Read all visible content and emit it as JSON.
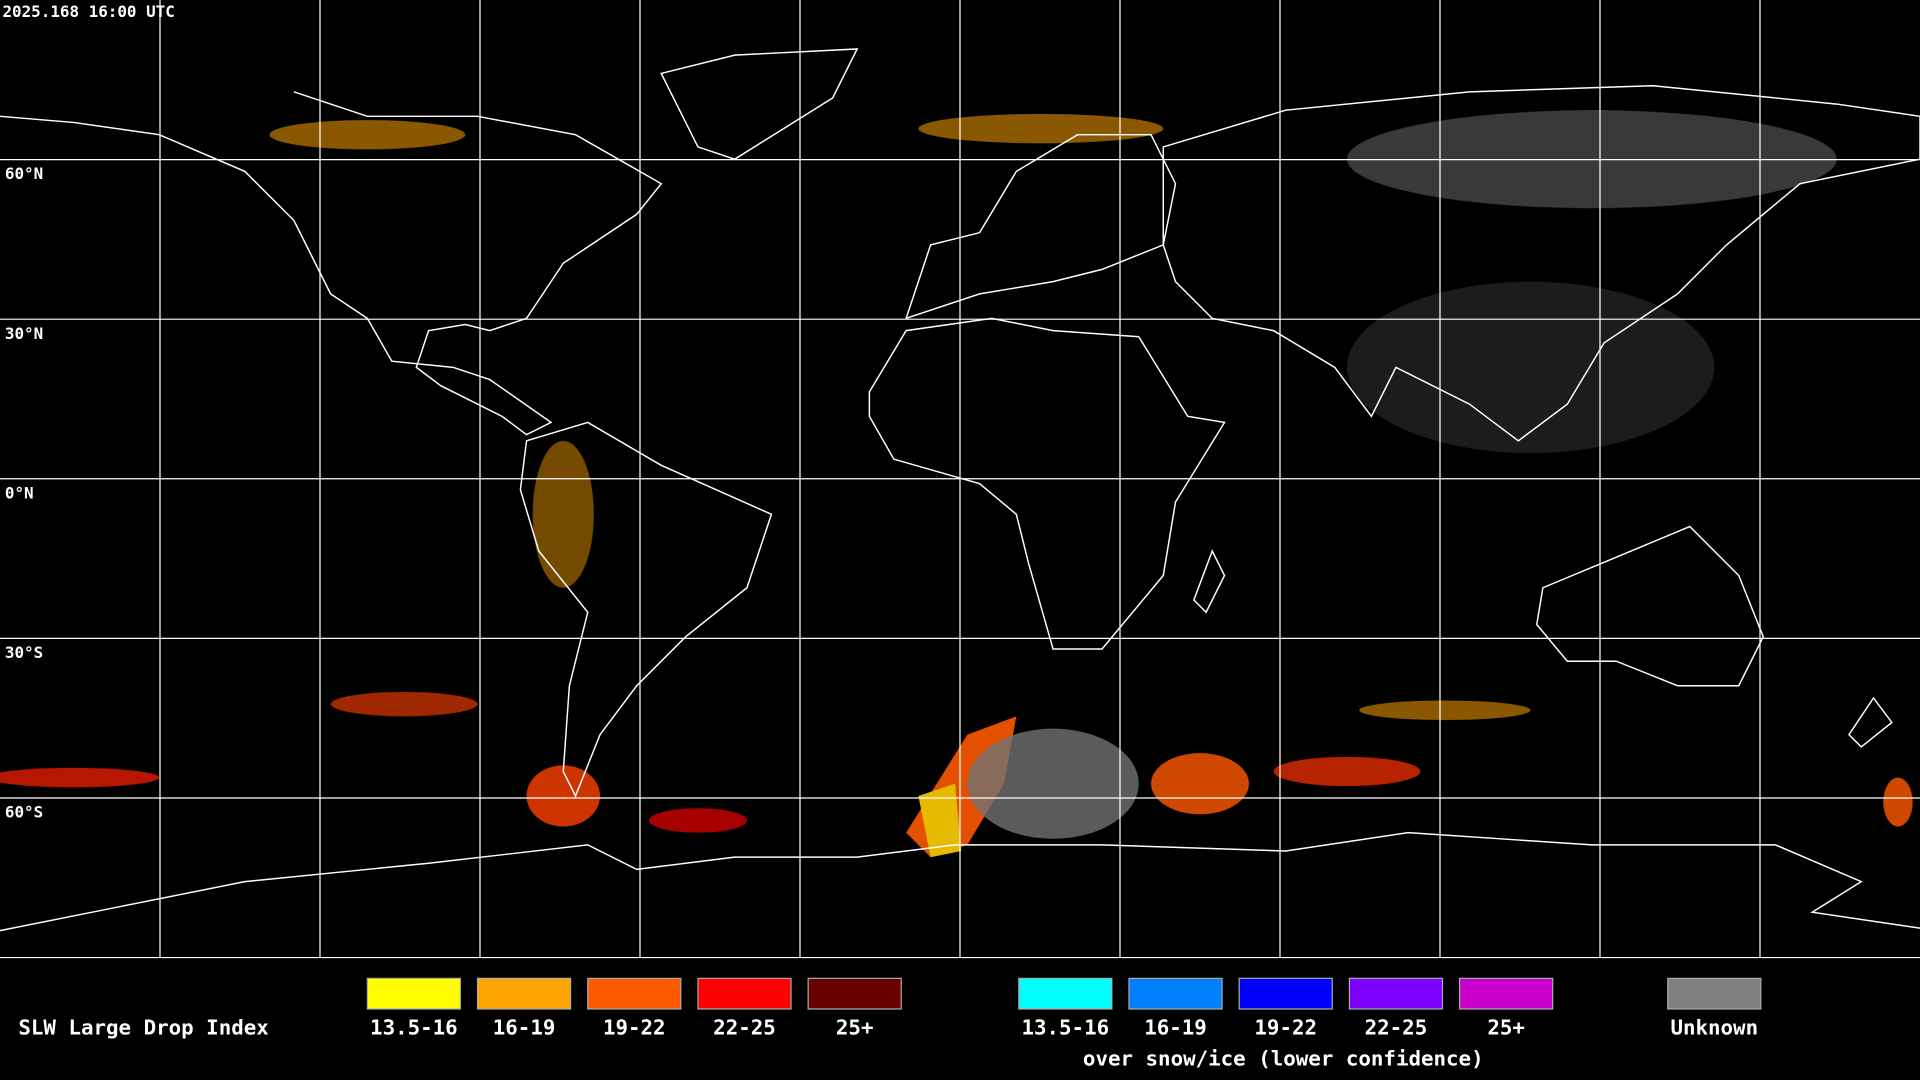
{
  "header": {
    "timestamp": "2025.168 16:00 UTC"
  },
  "map": {
    "lat_labels": [
      "60°N",
      "30°N",
      "0°N",
      "30°S",
      "60°S"
    ]
  },
  "legend": {
    "title": "SLW Large Drop Index",
    "items": [
      {
        "label": "13.5-16",
        "color": "#ffff00"
      },
      {
        "label": "16-19",
        "color": "#ffa500"
      },
      {
        "label": "19-22",
        "color": "#ff5a00"
      },
      {
        "label": "22-25",
        "color": "#ff0000"
      },
      {
        "label": "25+",
        "color": "#6b0000"
      }
    ],
    "snow_items": [
      {
        "label": "13.5-16",
        "color": "#00ffff"
      },
      {
        "label": "16-19",
        "color": "#0080ff"
      },
      {
        "label": "19-22",
        "color": "#0000ff"
      },
      {
        "label": "22-25",
        "color": "#8000ff"
      },
      {
        "label": "25+",
        "color": "#cc00cc"
      }
    ],
    "snow_note": "over snow/ice (lower confidence)",
    "unknown": {
      "label": "Unknown",
      "color": "#808080"
    }
  }
}
